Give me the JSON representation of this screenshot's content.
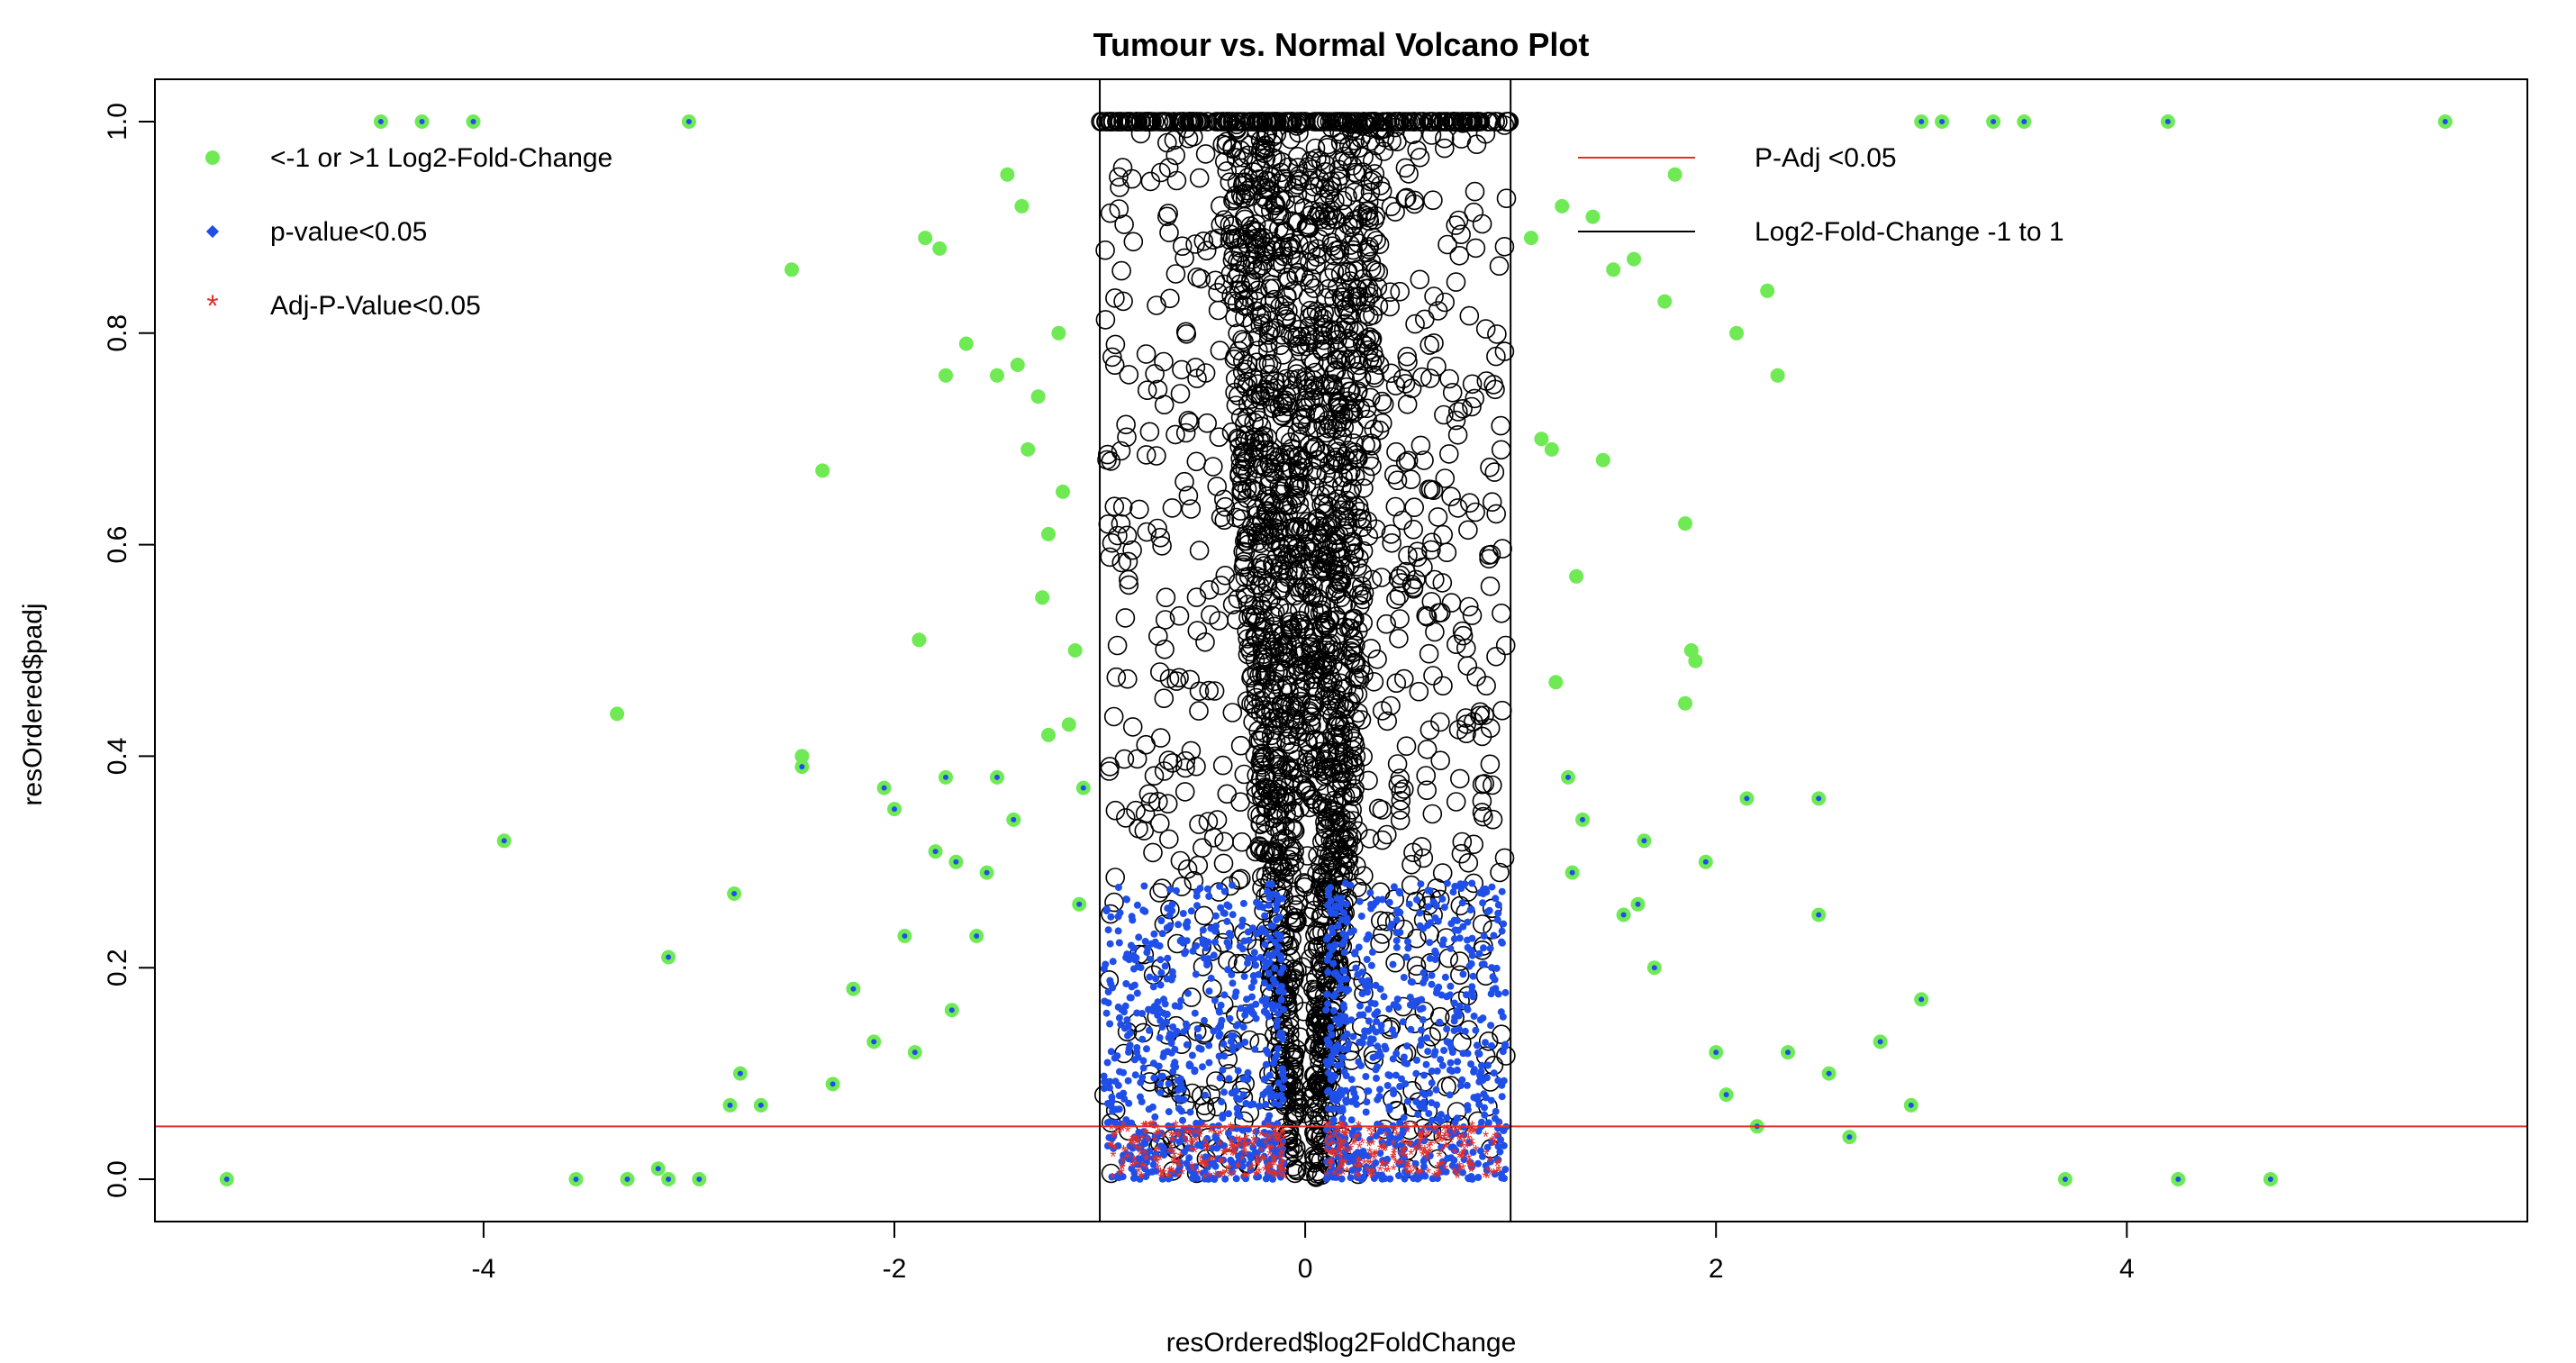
{
  "chart_data": {
    "type": "scatter",
    "title": "Tumour vs. Normal Volcano Plot",
    "xlabel": "resOrdered$log2FoldChange",
    "ylabel": "resOrdered$padj",
    "xlim": [
      -5.6,
      5.95
    ],
    "ylim": [
      -0.04,
      1.04
    ],
    "x_ticks": [
      -4,
      -2,
      0,
      2,
      4
    ],
    "x_tick_labels": [
      "-4",
      "-2",
      "0",
      "2",
      "4"
    ],
    "y_ticks": [
      0.0,
      0.2,
      0.4,
      0.6,
      0.8,
      1.0
    ],
    "y_tick_labels": [
      "0.0",
      "0.2",
      "0.4",
      "0.6",
      "0.8",
      "1.0"
    ],
    "grid": false,
    "reference_lines": [
      {
        "orientation": "horizontal",
        "value": 0.05,
        "color": "#e0302c"
      },
      {
        "orientation": "vertical",
        "value": -1,
        "color": "#000000"
      },
      {
        "orientation": "vertical",
        "value": 1,
        "color": "#000000"
      }
    ],
    "legend_left": {
      "placement": "top-left",
      "items": [
        {
          "label": "<-1 or >1 Log2-Fold-Change",
          "marker": "filled-circle",
          "color": "#6fea55"
        },
        {
          "label": "p-value<0.05",
          "marker": "diamond",
          "color": "#1f4fe8"
        },
        {
          "label": "Adj-P-Value<0.05",
          "marker": "asterisk",
          "color": "#e0302c"
        }
      ]
    },
    "legend_right": {
      "placement": "top-right",
      "items": [
        {
          "label": "P-Adj <0.05",
          "marker": "line",
          "color": "#e0302c"
        },
        {
          "label": "Log2-Fold-Change -1 to 1",
          "marker": "line",
          "color": "#000000"
        }
      ]
    },
    "colors": {
      "all_genes": "#000000",
      "large_fold_change": "#6fea55",
      "pvalue_sig": "#1f4fe8",
      "padj_sig": "#e0302c"
    },
    "series": [
      {
        "name": "<-1 or >1 Log2-Fold-Change",
        "points": [
          [
            -5.25,
            0.0
          ],
          [
            -4.5,
            1.0
          ],
          [
            -4.3,
            1.0
          ],
          [
            -4.05,
            1.0
          ],
          [
            -3.9,
            0.32
          ],
          [
            -3.55,
            0.0
          ],
          [
            -3.35,
            0.44
          ],
          [
            -3.3,
            0.0
          ],
          [
            -3.15,
            0.01
          ],
          [
            -3.1,
            0.21
          ],
          [
            -3.1,
            0.0
          ],
          [
            -3.0,
            1.0
          ],
          [
            -2.95,
            0.0
          ],
          [
            -2.8,
            0.07
          ],
          [
            -2.78,
            0.27
          ],
          [
            -2.75,
            0.1
          ],
          [
            -2.65,
            0.07
          ],
          [
            -2.5,
            0.86
          ],
          [
            -2.45,
            0.39
          ],
          [
            -2.45,
            0.4
          ],
          [
            -2.35,
            0.67
          ],
          [
            -2.3,
            0.09
          ],
          [
            -2.2,
            0.18
          ],
          [
            -2.1,
            0.13
          ],
          [
            -2.05,
            0.37
          ],
          [
            -2.0,
            0.35
          ],
          [
            -1.95,
            0.23
          ],
          [
            -1.9,
            0.12
          ],
          [
            -1.88,
            0.51
          ],
          [
            -1.85,
            0.89
          ],
          [
            -1.8,
            0.31
          ],
          [
            -1.78,
            0.88
          ],
          [
            -1.75,
            0.76
          ],
          [
            -1.75,
            0.38
          ],
          [
            -1.72,
            0.16
          ],
          [
            -1.7,
            0.3
          ],
          [
            -1.65,
            0.79
          ],
          [
            -1.6,
            0.23
          ],
          [
            -1.55,
            0.29
          ],
          [
            -1.5,
            0.76
          ],
          [
            -1.5,
            0.38
          ],
          [
            -1.45,
            0.95
          ],
          [
            -1.42,
            0.34
          ],
          [
            -1.4,
            0.77
          ],
          [
            -1.38,
            0.92
          ],
          [
            -1.35,
            0.69
          ],
          [
            -1.3,
            0.74
          ],
          [
            -1.28,
            0.55
          ],
          [
            -1.25,
            0.42
          ],
          [
            -1.25,
            0.61
          ],
          [
            -1.2,
            0.8
          ],
          [
            -1.18,
            0.65
          ],
          [
            -1.15,
            0.43
          ],
          [
            -1.12,
            0.5
          ],
          [
            -1.1,
            0.26
          ],
          [
            -1.08,
            0.37
          ],
          [
            1.1,
            0.89
          ],
          [
            1.15,
            0.7
          ],
          [
            1.2,
            0.69
          ],
          [
            1.22,
            0.47
          ],
          [
            1.25,
            0.92
          ],
          [
            1.28,
            0.38
          ],
          [
            1.3,
            0.29
          ],
          [
            1.32,
            0.57
          ],
          [
            1.35,
            0.34
          ],
          [
            1.4,
            0.91
          ],
          [
            1.45,
            0.68
          ],
          [
            1.5,
            0.86
          ],
          [
            1.55,
            0.25
          ],
          [
            1.6,
            0.87
          ],
          [
            1.62,
            0.26
          ],
          [
            1.65,
            0.32
          ],
          [
            1.7,
            0.2
          ],
          [
            1.75,
            0.83
          ],
          [
            1.8,
            0.95
          ],
          [
            1.85,
            0.45
          ],
          [
            1.85,
            0.62
          ],
          [
            1.88,
            0.5
          ],
          [
            1.9,
            0.49
          ],
          [
            1.95,
            0.3
          ],
          [
            2.0,
            0.12
          ],
          [
            2.05,
            0.08
          ],
          [
            2.1,
            0.8
          ],
          [
            2.15,
            0.36
          ],
          [
            2.2,
            0.05
          ],
          [
            2.25,
            0.84
          ],
          [
            2.3,
            0.76
          ],
          [
            2.35,
            0.12
          ],
          [
            2.5,
            0.25
          ],
          [
            2.5,
            0.36
          ],
          [
            2.55,
            0.1
          ],
          [
            2.65,
            0.04
          ],
          [
            2.8,
            0.13
          ],
          [
            2.95,
            0.07
          ],
          [
            3.0,
            0.17
          ],
          [
            3.0,
            1.0
          ],
          [
            3.1,
            1.0
          ],
          [
            3.35,
            1.0
          ],
          [
            3.5,
            1.0
          ],
          [
            3.7,
            0.0
          ],
          [
            4.2,
            1.0
          ],
          [
            4.25,
            0.0
          ],
          [
            4.7,
            0.0
          ],
          [
            5.55,
            1.0
          ]
        ]
      }
    ]
  }
}
